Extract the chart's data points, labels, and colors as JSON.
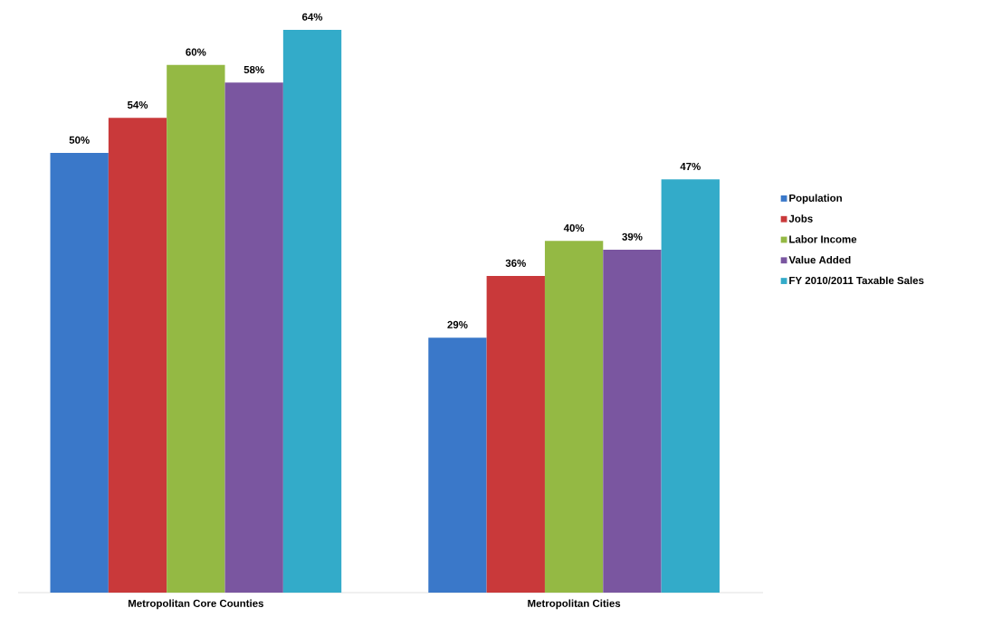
{
  "chart_data": {
    "type": "bar",
    "categories": [
      "Metropolitan Core Counties",
      "Metropolitan Cities"
    ],
    "series": [
      {
        "name": "Population",
        "color": "#3a78c9",
        "values": [
          50,
          29
        ],
        "value_labels": [
          "50%",
          "29%"
        ]
      },
      {
        "name": "Jobs",
        "color": "#c9393a",
        "values": [
          54,
          36
        ],
        "value_labels": [
          "54%",
          "36%"
        ]
      },
      {
        "name": "Labor Income",
        "color": "#94b944",
        "values": [
          60,
          40
        ],
        "value_labels": [
          "60%",
          "40%"
        ]
      },
      {
        "name": "Value Added",
        "color": "#7a56a0",
        "values": [
          58,
          39
        ],
        "value_labels": [
          "58%",
          "39%"
        ]
      },
      {
        "name": "FY 2010/2011 Taxable Sales",
        "color": "#33abc9",
        "values": [
          64,
          47
        ],
        "value_labels": [
          "64%",
          "47%"
        ]
      }
    ],
    "legend": "right"
  }
}
